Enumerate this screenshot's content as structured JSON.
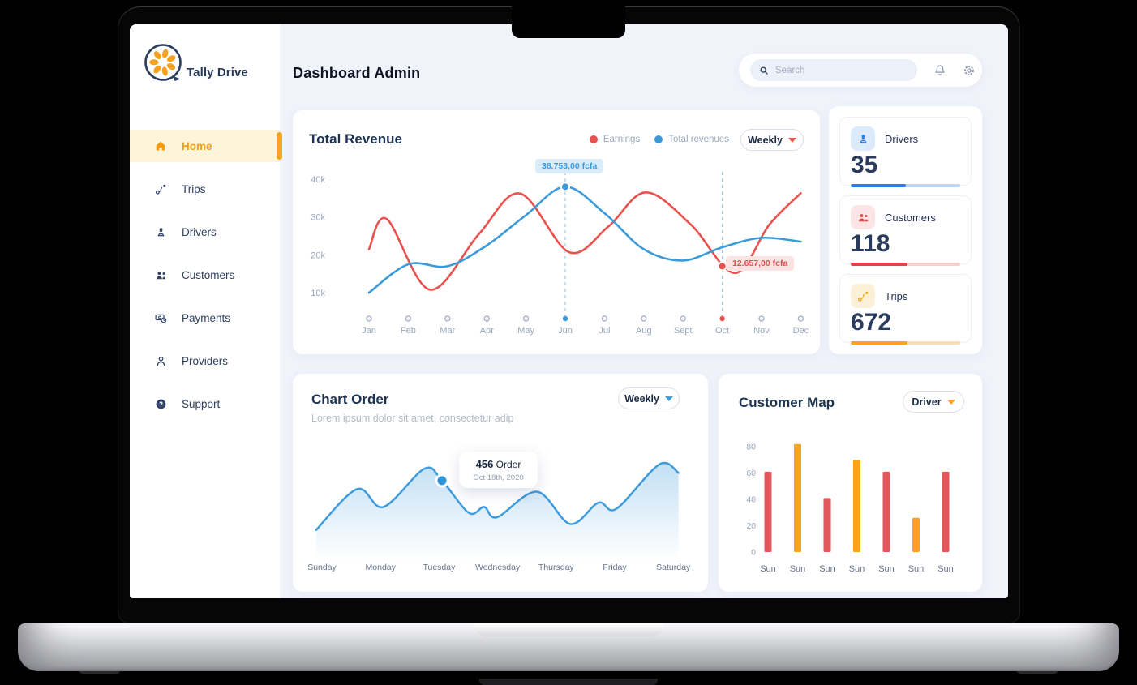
{
  "brand": {
    "name": "Tally Drive"
  },
  "header": {
    "title": "Dashboard Admin"
  },
  "search": {
    "placeholder": "Search"
  },
  "sidebar": {
    "items": [
      {
        "label": "Home",
        "icon": "home-icon",
        "active": true
      },
      {
        "label": "Trips",
        "icon": "trips-icon",
        "active": false
      },
      {
        "label": "Drivers",
        "icon": "drivers-icon",
        "active": false
      },
      {
        "label": "Customers",
        "icon": "customers-icon",
        "active": false
      },
      {
        "label": "Payments",
        "icon": "payments-icon",
        "active": false
      },
      {
        "label": "Providers",
        "icon": "providers-icon",
        "active": false
      },
      {
        "label": "Support",
        "icon": "support-icon",
        "active": false
      }
    ]
  },
  "revenue": {
    "title": "Total Revenue",
    "period_selector": "Weekly",
    "chart_data": {
      "type": "line",
      "categories": [
        "Jan",
        "Feb",
        "Mar",
        "Apr",
        "May",
        "Jun",
        "Jul",
        "Aug",
        "Sept",
        "Oct",
        "Nov",
        "Dec"
      ],
      "yticks": [
        {
          "value": 40,
          "label": "40k"
        },
        {
          "value": 30,
          "label": "30k"
        },
        {
          "value": 20,
          "label": "20k"
        },
        {
          "value": 10,
          "label": "10k"
        }
      ],
      "ylim": [
        5,
        42
      ],
      "unit": "k fcfa",
      "legend_position": "top-right",
      "series": [
        {
          "name": "Earnings",
          "color": "#E8514D",
          "points": [
            [
              0,
              21.5
            ],
            [
              0.45,
              29.5
            ],
            [
              1.55,
              10.8
            ],
            [
              2.8,
              25.5
            ],
            [
              3.85,
              36.2
            ],
            [
              5.1,
              20.7
            ],
            [
              6.1,
              27.5
            ],
            [
              7.05,
              36.5
            ],
            [
              8.2,
              28
            ],
            [
              9.32,
              15.2
            ],
            [
              10.2,
              28
            ],
            [
              11,
              36.3
            ]
          ]
        },
        {
          "name": "Total revenues",
          "color": "#3D9AD9",
          "points": [
            [
              0,
              10
            ],
            [
              1,
              17.5
            ],
            [
              2,
              17
            ],
            [
              3,
              22.5
            ],
            [
              4,
              30.5
            ],
            [
              5,
              38
            ],
            [
              6,
              31
            ],
            [
              7,
              21.5
            ],
            [
              8,
              18.5
            ],
            [
              9,
              22
            ],
            [
              10,
              24.5
            ],
            [
              11,
              23.5
            ]
          ]
        }
      ],
      "highlights": [
        {
          "month_index": 5,
          "series": "Total revenues",
          "color": "#3D9AD9",
          "value": 38,
          "label": "38.753,00 fcfa"
        },
        {
          "month_index": 9,
          "series": "Earnings",
          "color": "#E8514D",
          "value": 17,
          "label": "12.657,00 fcfa"
        }
      ]
    }
  },
  "stats": [
    {
      "label": "Drivers",
      "value": "35",
      "icon": "drivers-icon",
      "tile_bg": "#DCEBFB",
      "icon_color": "#2D7CEA",
      "bar_color": "#2D7CEA",
      "track_color": "#BBD7F6",
      "progress": 0.5
    },
    {
      "label": "Customers",
      "value": "118",
      "icon": "customers-icon",
      "tile_bg": "#FBE4E4",
      "icon_color": "#E04348",
      "bar_color": "#E04348",
      "track_color": "#F6CFD0",
      "progress": 0.52
    },
    {
      "label": "Trips",
      "value": "672",
      "icon": "trips-icon",
      "tile_bg": "#FCF0D8",
      "icon_color": "#F6A51C",
      "bar_color": "#F6A51C",
      "track_color": "#F8DFAF",
      "progress": 0.52
    }
  ],
  "order": {
    "title": "Chart Order",
    "subtitle": "Lorem ipsum dolor sit amet, consectetur adip",
    "period_selector": "Weekly",
    "chart_data": {
      "type": "area",
      "categories": [
        "Sunday",
        "Monday",
        "Tuesday",
        "Wednesday",
        "Thursday",
        "Friday",
        "Saturday"
      ],
      "line_color": "#3E9BDC",
      "fill_color": "#BFDEF4",
      "points": [
        [
          -0.1,
          25
        ],
        [
          0.6,
          73
        ],
        [
          1.05,
          52
        ],
        [
          1.75,
          97
        ],
        [
          2.05,
          83
        ],
        [
          2.51,
          45
        ],
        [
          2.77,
          52
        ],
        [
          2.99,
          40
        ],
        [
          3.67,
          70
        ],
        [
          4.24,
          32
        ],
        [
          4.72,
          57
        ],
        [
          5.03,
          50
        ],
        [
          5.76,
          102
        ],
        [
          6.09,
          92
        ]
      ],
      "marker": {
        "x": 2.05,
        "value": 83,
        "value_text": "456",
        "unit": "Order",
        "date": "Oct 18th, 2020"
      }
    }
  },
  "map": {
    "title": "Customer Map",
    "period_selector": "Driver",
    "chart_data": {
      "type": "bar",
      "categories": [
        "Sun",
        "Sun",
        "Sun",
        "Sun",
        "Sun",
        "Sun",
        "Sun"
      ],
      "values": [
        61,
        82,
        41,
        70,
        61,
        26,
        61
      ],
      "colors": [
        "#E2575B",
        "#FAA41B",
        "#E2575B",
        "#FAA41B",
        "#E2575B",
        "#FAA41B",
        "#E2575B"
      ],
      "yticks": [
        0,
        20,
        40,
        60,
        80
      ],
      "ylim": [
        0,
        86
      ]
    }
  }
}
